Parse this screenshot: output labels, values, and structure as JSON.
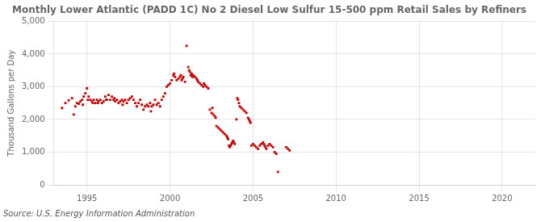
{
  "chart_data": {
    "type": "scatter",
    "title": "Monthly Lower Atlantic (PADD 1C) No 2 Diesel Low Sulfur 15-500 ppm Retail Sales by Refiners",
    "ylabel": "Thousand Gallons per Day",
    "source": "Source: U.S. Energy Information Administration",
    "color": "#cc0000",
    "marker": "square",
    "grid": true,
    "xlim": [
      1993.0,
      2022.0
    ],
    "ylim": [
      0,
      5000
    ],
    "xticks": [
      1995,
      2000,
      2005,
      2010,
      2015,
      2020
    ],
    "yticks": [
      0,
      {
        "value": 1000,
        "label": "1,000"
      },
      {
        "value": 2000,
        "label": "2,000"
      },
      {
        "value": 3000,
        "label": "3,000"
      },
      {
        "value": 4000,
        "label": "4,000"
      },
      {
        "value": 5000,
        "label": "5,000"
      }
    ],
    "x": [
      1993.5,
      1993.7,
      1993.9,
      1994.1,
      1994.2,
      1994.3,
      1994.4,
      1994.5,
      1994.6,
      1994.7,
      1994.75,
      1994.8,
      1994.9,
      1995.0,
      1995.05,
      1995.1,
      1995.2,
      1995.3,
      1995.35,
      1995.4,
      1995.5,
      1995.6,
      1995.65,
      1995.7,
      1995.8,
      1995.9,
      1996.0,
      1996.1,
      1996.15,
      1996.2,
      1996.3,
      1996.4,
      1996.5,
      1996.6,
      1996.65,
      1996.7,
      1996.8,
      1996.9,
      1997.0,
      1997.1,
      1997.15,
      1997.2,
      1997.3,
      1997.4,
      1997.5,
      1997.6,
      1997.7,
      1997.8,
      1997.9,
      1998.0,
      1998.1,
      1998.2,
      1998.3,
      1998.4,
      1998.5,
      1998.6,
      1998.7,
      1998.8,
      1998.85,
      1998.9,
      1999.0,
      1999.1,
      1999.2,
      1999.3,
      1999.4,
      1999.5,
      1999.6,
      1999.7,
      1999.8,
      1999.9,
      2000.0,
      2000.1,
      2000.2,
      2000.25,
      2000.3,
      2000.4,
      2000.5,
      2000.6,
      2000.65,
      2000.7,
      2000.75,
      2000.8,
      2000.9,
      2001.0,
      2001.1,
      2001.15,
      2001.2,
      2001.25,
      2001.3,
      2001.35,
      2001.4,
      2001.5,
      2001.6,
      2001.65,
      2001.7,
      2001.8,
      2001.9,
      2002.0,
      2002.05,
      2002.1,
      2002.2,
      2002.3,
      2002.4,
      2002.5,
      2002.55,
      2002.6,
      2002.7,
      2002.75,
      2002.8,
      2002.9,
      2003.0,
      2003.1,
      2003.2,
      2003.3,
      2003.4,
      2003.45,
      2003.5,
      2003.55,
      2003.6,
      2003.65,
      2003.7,
      2003.75,
      2003.8,
      2003.85,
      2003.9,
      2004.0,
      2004.05,
      2004.1,
      2004.15,
      2004.2,
      2004.3,
      2004.4,
      2004.5,
      2004.6,
      2004.7,
      2004.75,
      2004.8,
      2004.85,
      2004.9,
      2005.0,
      2005.1,
      2005.2,
      2005.3,
      2005.4,
      2005.5,
      2005.6,
      2005.65,
      2005.7,
      2005.75,
      2005.8,
      2005.9,
      2006.0,
      2006.1,
      2006.2,
      2006.3,
      2006.4,
      2006.5,
      2007.0,
      2007.1,
      2007.2
    ],
    "values": [
      2350,
      2500,
      2580,
      2650,
      2150,
      2400,
      2500,
      2480,
      2550,
      2600,
      2450,
      2700,
      2800,
      2950,
      2600,
      2700,
      2600,
      2550,
      2500,
      2600,
      2500,
      2600,
      2500,
      2550,
      2600,
      2500,
      2550,
      2700,
      2600,
      2600,
      2750,
      2600,
      2700,
      2600,
      2650,
      2550,
      2600,
      2500,
      2550,
      2600,
      2450,
      2550,
      2600,
      2500,
      2600,
      2650,
      2700,
      2600,
      2500,
      2400,
      2500,
      2600,
      2450,
      2300,
      2400,
      2450,
      2400,
      2500,
      2250,
      2400,
      2450,
      2600,
      2450,
      2500,
      2400,
      2600,
      2700,
      2800,
      3000,
      3050,
      3100,
      3200,
      3350,
      3400,
      3300,
      3200,
      3250,
      3300,
      3350,
      3200,
      3250,
      3300,
      3150,
      4250,
      3600,
      3500,
      3450,
      3350,
      3400,
      3300,
      3350,
      3300,
      3250,
      3200,
      3150,
      3100,
      3050,
      3000,
      3100,
      3050,
      3000,
      2950,
      2300,
      2200,
      2350,
      2150,
      2100,
      2050,
      1800,
      1750,
      1700,
      1650,
      1600,
      1550,
      1500,
      1450,
      1400,
      1200,
      1150,
      1200,
      1250,
      1300,
      1350,
      1300,
      1250,
      2000,
      2650,
      2600,
      2500,
      2400,
      2350,
      2300,
      2250,
      2200,
      2050,
      2000,
      1950,
      1900,
      1200,
      1250,
      1200,
      1150,
      1100,
      1200,
      1250,
      1300,
      1250,
      1200,
      1150,
      1100,
      1200,
      1250,
      1200,
      1150,
      1000,
      950,
      400,
      1150,
      1100,
      1050
    ]
  }
}
